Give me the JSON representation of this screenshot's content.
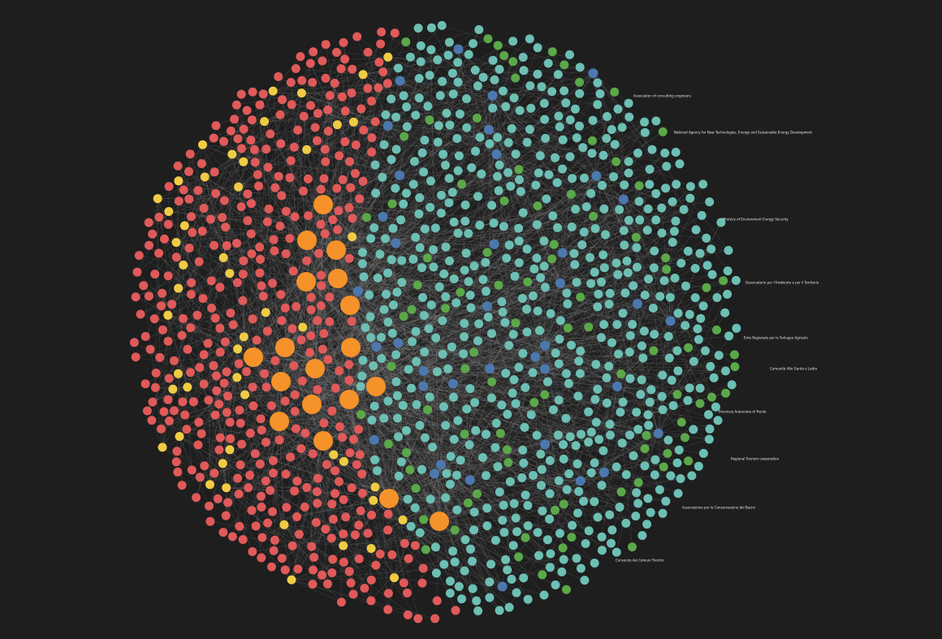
{
  "graph": {
    "background": "#1e1e1e",
    "edge_color": "#9a9a9a",
    "groups": [
      {
        "id": "orange-hub",
        "color": "#f5922a"
      },
      {
        "id": "red",
        "color": "#e05a5a"
      },
      {
        "id": "yellow",
        "color": "#f0cc45"
      },
      {
        "id": "teal",
        "color": "#6dbfb4"
      },
      {
        "id": "green",
        "color": "#5ba84a"
      },
      {
        "id": "blue",
        "color": "#4c78ae"
      }
    ],
    "labels": [
      "Ministry of Environment Energy Security",
      "National Agency for New Technologies, Energy and Sustainable Energy Development",
      "Association of consulting engineers",
      "Regional Tourism cooperation",
      "Associazione per la Conservazione dei Bacini",
      "Osservatorio per l'Ambiente e per il Territorio",
      "Ente Regionale per lo Sviluppo Agricolo",
      "Comunità Alto Garda e Ledro",
      "Provincia Autonoma di Trento",
      "Consorzio dei Comuni Trentini"
    ]
  }
}
